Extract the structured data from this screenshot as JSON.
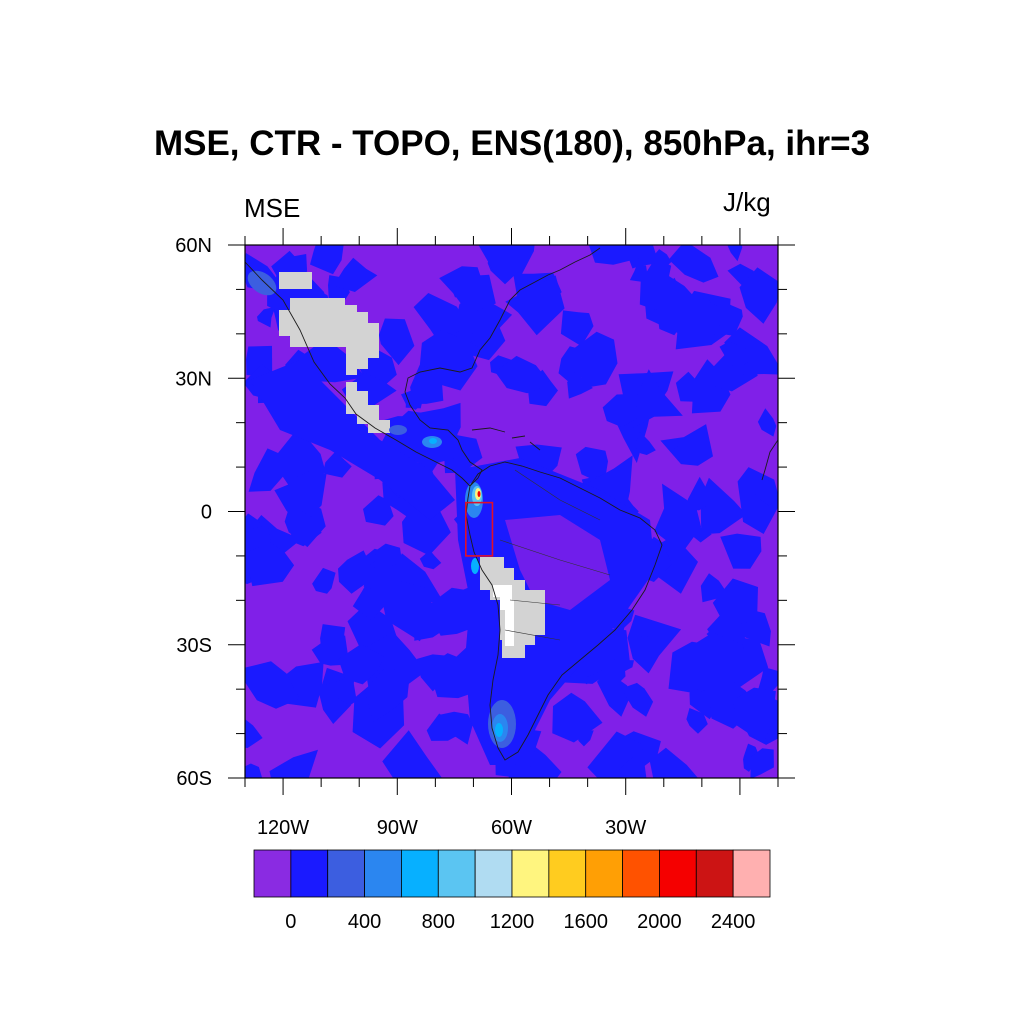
{
  "title": "MSE, CTR - TOPO, ENS(180), 850hPa, ihr=3",
  "left_label": "MSE",
  "right_label": "J/kg",
  "map": {
    "lon_range": [
      -130,
      10
    ],
    "lat_range": [
      -60,
      60
    ],
    "lat_ticks": [
      {
        "value": 60,
        "label": "60N"
      },
      {
        "value": 30,
        "label": "30N"
      },
      {
        "value": 0,
        "label": "0"
      },
      {
        "value": -30,
        "label": "30S"
      },
      {
        "value": -60,
        "label": "60S"
      }
    ],
    "lon_ticks": [
      {
        "value": -120,
        "label": "120W"
      },
      {
        "value": -90,
        "label": "90W"
      },
      {
        "value": -60,
        "label": "60W"
      },
      {
        "value": -30,
        "label": "30W"
      }
    ],
    "background_color": "#8020e8",
    "masked_color": "#d3d3d3",
    "box": {
      "lon_range": [
        -72,
        -65
      ],
      "lat_range": [
        -10,
        2
      ],
      "color": "#e0102a"
    }
  },
  "colorbar": {
    "colors": [
      "#8a2be2",
      "#1a1aff",
      "#3c5ee0",
      "#2b86f0",
      "#07b0ff",
      "#5bc5f2",
      "#b0dcf2",
      "#fff57f",
      "#ffcc1f",
      "#ff9f05",
      "#ff5200",
      "#f50000",
      "#cc1414",
      "#ffb0b0"
    ],
    "tick_labels": [
      "0",
      "400",
      "800",
      "1200",
      "1600",
      "2000",
      "2400"
    ],
    "tick_boundaries": [
      1,
      3,
      5,
      7,
      9,
      11,
      13
    ]
  }
}
